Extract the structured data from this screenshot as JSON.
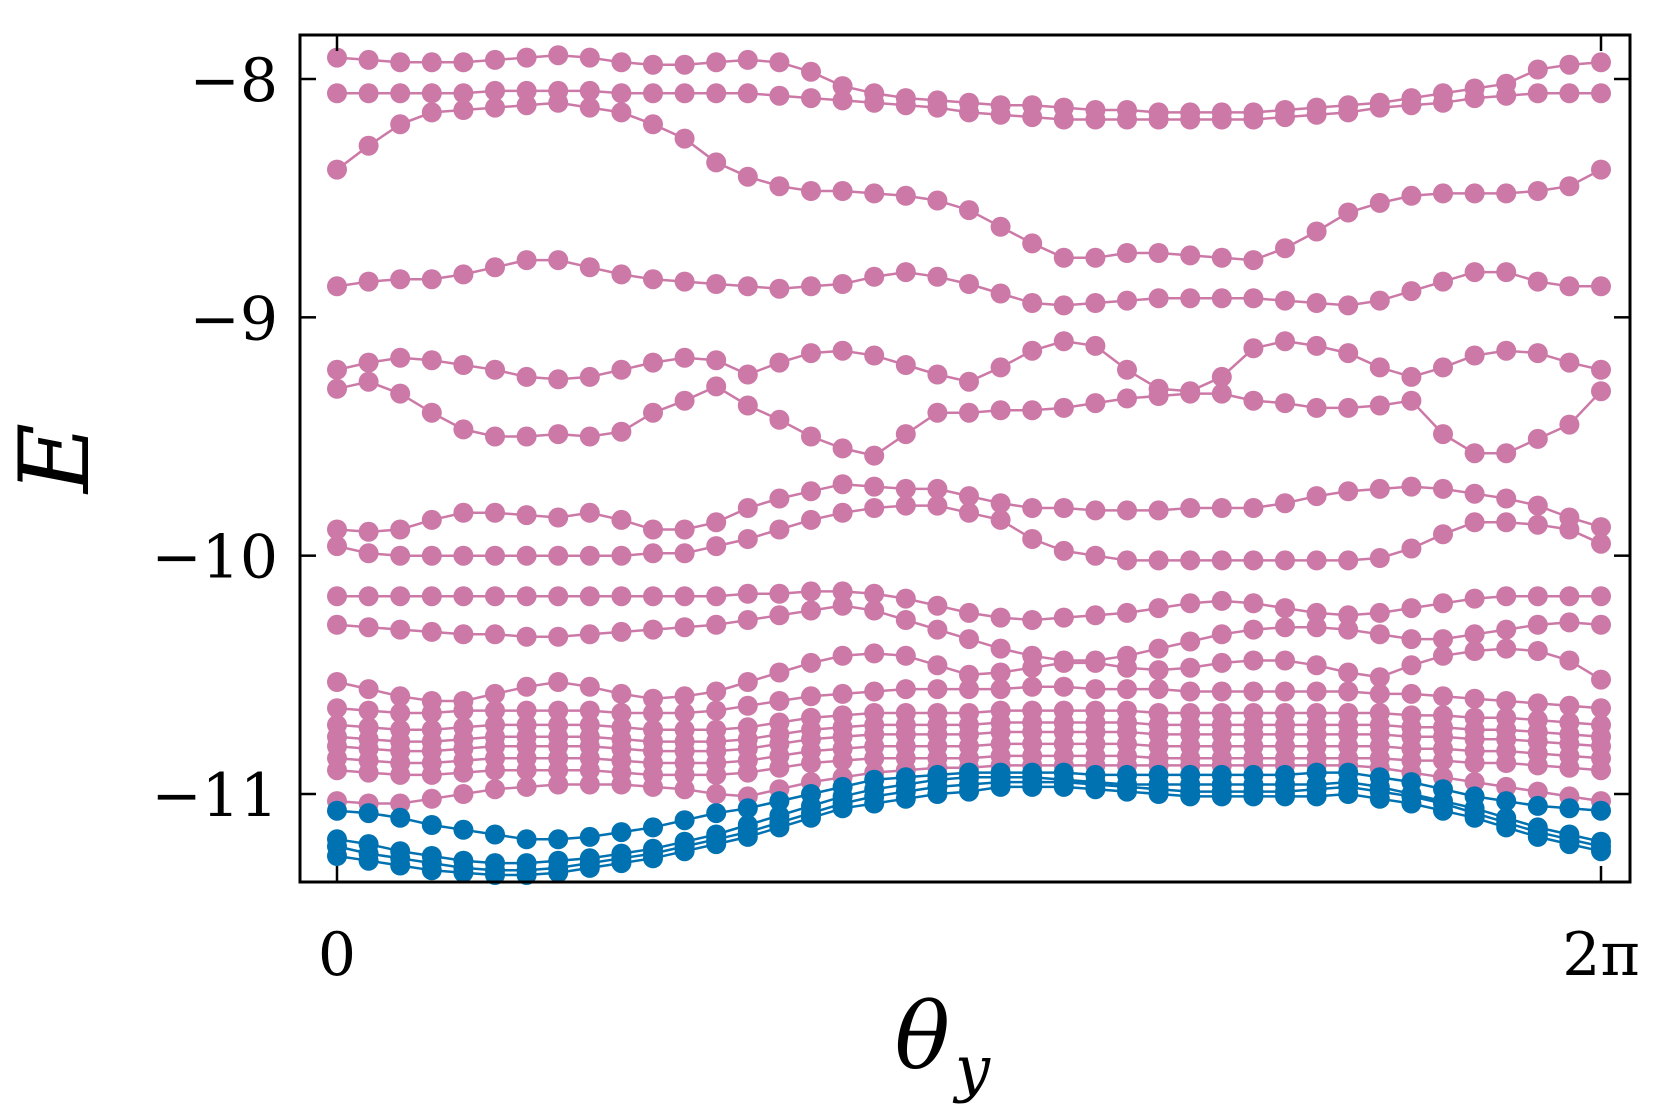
{
  "chart_data": {
    "type": "line",
    "xlabel": "θ",
    "xlabel_sub": "y",
    "ylabel": "E",
    "xlim": [
      0,
      6.2832
    ],
    "ylim": [
      -11.43,
      -7.8
    ],
    "grid": false,
    "legend": "none",
    "x_ticks": [
      {
        "value": 0,
        "label": "0"
      },
      {
        "value": 6.2832,
        "label": "2π"
      }
    ],
    "y_ticks": [
      {
        "value": -8,
        "label": "−8"
      },
      {
        "value": -9,
        "label": "−9"
      },
      {
        "value": -10,
        "label": "−10"
      },
      {
        "value": -11,
        "label": "−11"
      }
    ],
    "colors": {
      "upper_bands": "#cc79a7",
      "lowest_bands": "#0072b2"
    },
    "n_points": 41,
    "series": [
      {
        "color": "#0072b2",
        "values": [
          -11.26,
          -11.28,
          -11.3,
          -11.32,
          -11.33,
          -11.34,
          -11.34,
          -11.33,
          -11.31,
          -11.29,
          -11.27,
          -11.24,
          -11.21,
          -11.18,
          -11.14,
          -11.1,
          -11.06,
          -11.04,
          -11.02,
          -11.0,
          -10.99,
          -10.97,
          -10.97,
          -10.97,
          -10.98,
          -10.99,
          -11.0,
          -11.01,
          -11.01,
          -11.01,
          -11.01,
          -11.01,
          -11.0,
          -11.02,
          -11.04,
          -11.07,
          -11.1,
          -11.14,
          -11.18,
          -11.21,
          -11.24
        ]
      },
      {
        "color": "#0072b2",
        "values": [
          -11.22,
          -11.25,
          -11.27,
          -11.29,
          -11.31,
          -11.32,
          -11.32,
          -11.31,
          -11.29,
          -11.27,
          -11.25,
          -11.22,
          -11.19,
          -11.16,
          -11.12,
          -11.08,
          -11.04,
          -11.01,
          -10.99,
          -10.97,
          -10.96,
          -10.95,
          -10.95,
          -10.95,
          -10.96,
          -10.97,
          -10.98,
          -10.99,
          -10.99,
          -10.99,
          -10.99,
          -10.98,
          -10.97,
          -10.99,
          -11.01,
          -11.04,
          -11.08,
          -11.12,
          -11.16,
          -11.19,
          -11.22
        ]
      },
      {
        "color": "#0072b2",
        "values": [
          -11.19,
          -11.21,
          -11.24,
          -11.26,
          -11.28,
          -11.29,
          -11.29,
          -11.28,
          -11.27,
          -11.25,
          -11.23,
          -11.2,
          -11.17,
          -11.13,
          -11.09,
          -11.05,
          -11.01,
          -10.98,
          -10.96,
          -10.94,
          -10.93,
          -10.93,
          -10.93,
          -10.94,
          -10.95,
          -10.96,
          -10.96,
          -10.96,
          -10.96,
          -10.96,
          -10.96,
          -10.96,
          -10.95,
          -10.97,
          -11.0,
          -11.03,
          -11.06,
          -11.1,
          -11.14,
          -11.17,
          -11.2
        ]
      },
      {
        "color": "#0072b2",
        "values": [
          -11.07,
          -11.08,
          -11.1,
          -11.13,
          -11.15,
          -11.17,
          -11.19,
          -11.19,
          -11.18,
          -11.16,
          -11.14,
          -11.11,
          -11.08,
          -11.06,
          -11.03,
          -11.0,
          -10.97,
          -10.94,
          -10.93,
          -10.92,
          -10.91,
          -10.91,
          -10.91,
          -10.91,
          -10.92,
          -10.92,
          -10.92,
          -10.92,
          -10.92,
          -10.92,
          -10.92,
          -10.91,
          -10.91,
          -10.93,
          -10.95,
          -10.98,
          -11.01,
          -11.03,
          -11.05,
          -11.06,
          -11.07
        ]
      },
      {
        "color": "#cc79a7",
        "values": [
          -11.03,
          -11.04,
          -11.04,
          -11.02,
          -11.0,
          -10.98,
          -10.97,
          -10.96,
          -10.96,
          -10.96,
          -10.97,
          -10.98,
          -11.0,
          -11.01,
          -10.98,
          -10.95,
          -10.93,
          -10.91,
          -10.9,
          -10.89,
          -10.89,
          -10.88,
          -10.88,
          -10.88,
          -10.88,
          -10.88,
          -10.88,
          -10.88,
          -10.88,
          -10.88,
          -10.88,
          -10.88,
          -10.88,
          -10.89,
          -10.91,
          -10.93,
          -10.95,
          -10.97,
          -10.99,
          -11.01,
          -11.03
        ]
      },
      {
        "color": "#cc79a7",
        "values": [
          -10.9,
          -10.91,
          -10.92,
          -10.92,
          -10.91,
          -10.9,
          -10.9,
          -10.9,
          -10.9,
          -10.91,
          -10.92,
          -10.92,
          -10.92,
          -10.91,
          -10.89,
          -10.87,
          -10.86,
          -10.85,
          -10.85,
          -10.85,
          -10.85,
          -10.84,
          -10.84,
          -10.84,
          -10.84,
          -10.84,
          -10.85,
          -10.85,
          -10.85,
          -10.85,
          -10.85,
          -10.85,
          -10.85,
          -10.85,
          -10.86,
          -10.86,
          -10.87,
          -10.87,
          -10.88,
          -10.89,
          -10.9
        ]
      },
      {
        "color": "#cc79a7",
        "values": [
          -10.85,
          -10.86,
          -10.87,
          -10.87,
          -10.86,
          -10.85,
          -10.85,
          -10.85,
          -10.85,
          -10.86,
          -10.87,
          -10.87,
          -10.87,
          -10.86,
          -10.84,
          -10.82,
          -10.81,
          -10.8,
          -10.8,
          -10.8,
          -10.8,
          -10.79,
          -10.79,
          -10.79,
          -10.79,
          -10.79,
          -10.8,
          -10.8,
          -10.8,
          -10.8,
          -10.8,
          -10.8,
          -10.8,
          -10.8,
          -10.81,
          -10.81,
          -10.82,
          -10.82,
          -10.83,
          -10.84,
          -10.85
        ]
      },
      {
        "color": "#cc79a7",
        "values": [
          -10.8,
          -10.81,
          -10.82,
          -10.82,
          -10.81,
          -10.8,
          -10.8,
          -10.8,
          -10.8,
          -10.81,
          -10.82,
          -10.82,
          -10.82,
          -10.81,
          -10.79,
          -10.77,
          -10.76,
          -10.75,
          -10.75,
          -10.75,
          -10.75,
          -10.74,
          -10.74,
          -10.74,
          -10.74,
          -10.74,
          -10.75,
          -10.75,
          -10.75,
          -10.75,
          -10.75,
          -10.75,
          -10.75,
          -10.75,
          -10.76,
          -10.76,
          -10.77,
          -10.77,
          -10.78,
          -10.79,
          -10.8
        ]
      },
      {
        "color": "#cc79a7",
        "values": [
          -10.76,
          -10.77,
          -10.78,
          -10.78,
          -10.77,
          -10.76,
          -10.76,
          -10.76,
          -10.76,
          -10.77,
          -10.78,
          -10.78,
          -10.78,
          -10.77,
          -10.75,
          -10.73,
          -10.72,
          -10.71,
          -10.71,
          -10.71,
          -10.71,
          -10.7,
          -10.7,
          -10.7,
          -10.7,
          -10.7,
          -10.71,
          -10.71,
          -10.71,
          -10.71,
          -10.71,
          -10.71,
          -10.71,
          -10.71,
          -10.72,
          -10.72,
          -10.73,
          -10.73,
          -10.74,
          -10.75,
          -10.76
        ]
      },
      {
        "color": "#cc79a7",
        "values": [
          -10.71,
          -10.72,
          -10.73,
          -10.73,
          -10.72,
          -10.71,
          -10.71,
          -10.71,
          -10.71,
          -10.72,
          -10.73,
          -10.73,
          -10.73,
          -10.72,
          -10.7,
          -10.68,
          -10.67,
          -10.66,
          -10.66,
          -10.66,
          -10.66,
          -10.65,
          -10.65,
          -10.65,
          -10.65,
          -10.65,
          -10.66,
          -10.66,
          -10.66,
          -10.66,
          -10.66,
          -10.66,
          -10.66,
          -10.66,
          -10.67,
          -10.67,
          -10.68,
          -10.68,
          -10.69,
          -10.7,
          -10.71
        ]
      },
      {
        "color": "#cc79a7",
        "values": [
          -10.64,
          -10.65,
          -10.66,
          -10.66,
          -10.65,
          -10.65,
          -10.65,
          -10.65,
          -10.65,
          -10.66,
          -10.66,
          -10.66,
          -10.65,
          -10.63,
          -10.61,
          -10.59,
          -10.58,
          -10.57,
          -10.56,
          -10.56,
          -10.56,
          -10.56,
          -10.55,
          -10.55,
          -10.56,
          -10.56,
          -10.56,
          -10.57,
          -10.57,
          -10.57,
          -10.57,
          -10.57,
          -10.57,
          -10.58,
          -10.58,
          -10.59,
          -10.6,
          -10.61,
          -10.62,
          -10.63,
          -10.64
        ]
      },
      {
        "color": "#cc79a7",
        "values": [
          -10.53,
          -10.56,
          -10.59,
          -10.61,
          -10.61,
          -10.58,
          -10.55,
          -10.53,
          -10.55,
          -10.58,
          -10.6,
          -10.59,
          -10.57,
          -10.53,
          -10.49,
          -10.45,
          -10.42,
          -10.41,
          -10.42,
          -10.46,
          -10.5,
          -10.49,
          -10.47,
          -10.45,
          -10.45,
          -10.47,
          -10.48,
          -10.47,
          -10.45,
          -10.44,
          -10.44,
          -10.46,
          -10.49,
          -10.51,
          -10.46,
          -10.42,
          -10.4,
          -10.39,
          -10.4,
          -10.44,
          -10.52
        ]
      },
      {
        "color": "#cc79a7",
        "values": [
          -10.29,
          -10.3,
          -10.31,
          -10.32,
          -10.33,
          -10.33,
          -10.34,
          -10.34,
          -10.33,
          -10.32,
          -10.31,
          -10.3,
          -10.29,
          -10.27,
          -10.25,
          -10.23,
          -10.21,
          -10.23,
          -10.27,
          -10.31,
          -10.35,
          -10.39,
          -10.42,
          -10.44,
          -10.44,
          -10.42,
          -10.39,
          -10.36,
          -10.33,
          -10.31,
          -10.3,
          -10.3,
          -10.31,
          -10.33,
          -10.35,
          -10.35,
          -10.33,
          -10.31,
          -10.29,
          -10.28,
          -10.29
        ]
      },
      {
        "color": "#cc79a7",
        "values": [
          -10.17,
          -10.17,
          -10.17,
          -10.17,
          -10.17,
          -10.17,
          -10.17,
          -10.17,
          -10.17,
          -10.17,
          -10.17,
          -10.17,
          -10.17,
          -10.16,
          -10.16,
          -10.15,
          -10.15,
          -10.16,
          -10.18,
          -10.21,
          -10.24,
          -10.26,
          -10.27,
          -10.26,
          -10.25,
          -10.24,
          -10.22,
          -10.2,
          -10.19,
          -10.2,
          -10.22,
          -10.24,
          -10.25,
          -10.24,
          -10.22,
          -10.2,
          -10.18,
          -10.17,
          -10.17,
          -10.17,
          -10.17
        ]
      },
      {
        "color": "#cc79a7",
        "values": [
          -9.96,
          -9.99,
          -10.0,
          -10.0,
          -10.0,
          -10.0,
          -10.0,
          -10.0,
          -10.0,
          -10.0,
          -9.99,
          -9.99,
          -9.96,
          -9.93,
          -9.89,
          -9.85,
          -9.82,
          -9.8,
          -9.79,
          -9.79,
          -9.82,
          -9.85,
          -9.93,
          -9.98,
          -10.0,
          -10.02,
          -10.02,
          -10.02,
          -10.02,
          -10.02,
          -10.02,
          -10.02,
          -10.02,
          -10.01,
          -9.97,
          -9.91,
          -9.86,
          -9.86,
          -9.87,
          -9.89,
          -9.95
        ]
      },
      {
        "color": "#cc79a7",
        "values": [
          -9.89,
          -9.9,
          -9.89,
          -9.85,
          -9.82,
          -9.82,
          -9.83,
          -9.84,
          -9.82,
          -9.85,
          -9.89,
          -9.89,
          -9.86,
          -9.8,
          -9.76,
          -9.73,
          -9.7,
          -9.71,
          -9.72,
          -9.72,
          -9.75,
          -9.78,
          -9.8,
          -9.8,
          -9.81,
          -9.81,
          -9.81,
          -9.8,
          -9.8,
          -9.8,
          -9.78,
          -9.75,
          -9.73,
          -9.72,
          -9.71,
          -9.72,
          -9.74,
          -9.76,
          -9.79,
          -9.84,
          -9.88
        ]
      },
      {
        "color": "#cc79a7",
        "values": [
          -9.3,
          -9.27,
          -9.32,
          -9.4,
          -9.47,
          -9.5,
          -9.5,
          -9.49,
          -9.5,
          -9.48,
          -9.4,
          -9.35,
          -9.29,
          -9.37,
          -9.43,
          -9.5,
          -9.55,
          -9.58,
          -9.49,
          -9.4,
          -9.4,
          -9.39,
          -9.39,
          -9.38,
          -9.36,
          -9.34,
          -9.33,
          -9.32,
          -9.32,
          -9.35,
          -9.36,
          -9.38,
          -9.38,
          -9.37,
          -9.35,
          -9.49,
          -9.57,
          -9.57,
          -9.51,
          -9.45,
          -9.31
        ]
      },
      {
        "color": "#cc79a7",
        "values": [
          -9.22,
          -9.19,
          -9.17,
          -9.18,
          -9.2,
          -9.22,
          -9.25,
          -9.26,
          -9.25,
          -9.22,
          -9.19,
          -9.17,
          -9.18,
          -9.24,
          -9.19,
          -9.15,
          -9.14,
          -9.16,
          -9.2,
          -9.24,
          -9.27,
          -9.21,
          -9.14,
          -9.1,
          -9.12,
          -9.22,
          -9.3,
          -9.31,
          -9.25,
          -9.13,
          -9.1,
          -9.12,
          -9.15,
          -9.21,
          -9.25,
          -9.21,
          -9.16,
          -9.14,
          -9.15,
          -9.19,
          -9.22
        ]
      },
      {
        "color": "#cc79a7",
        "values": [
          -8.87,
          -8.85,
          -8.84,
          -8.84,
          -8.82,
          -8.79,
          -8.76,
          -8.76,
          -8.79,
          -8.82,
          -8.84,
          -8.85,
          -8.86,
          -8.87,
          -8.88,
          -8.87,
          -8.86,
          -8.83,
          -8.81,
          -8.83,
          -8.86,
          -8.9,
          -8.94,
          -8.95,
          -8.94,
          -8.93,
          -8.92,
          -8.92,
          -8.92,
          -8.92,
          -8.93,
          -8.94,
          -8.95,
          -8.93,
          -8.89,
          -8.85,
          -8.81,
          -8.81,
          -8.85,
          -8.87,
          -8.87
        ]
      },
      {
        "color": "#cc79a7",
        "values": [
          -8.38,
          -8.28,
          -8.19,
          -8.14,
          -8.13,
          -8.12,
          -8.11,
          -8.1,
          -8.12,
          -8.14,
          -8.19,
          -8.25,
          -8.35,
          -8.41,
          -8.45,
          -8.47,
          -8.47,
          -8.48,
          -8.49,
          -8.51,
          -8.55,
          -8.62,
          -8.69,
          -8.75,
          -8.75,
          -8.73,
          -8.73,
          -8.74,
          -8.75,
          -8.76,
          -8.71,
          -8.64,
          -8.56,
          -8.52,
          -8.49,
          -8.48,
          -8.48,
          -8.48,
          -8.47,
          -8.45,
          -8.38
        ]
      },
      {
        "color": "#cc79a7",
        "values": [
          -8.06,
          -8.06,
          -8.06,
          -8.06,
          -8.06,
          -8.05,
          -8.05,
          -8.05,
          -8.05,
          -8.06,
          -8.06,
          -8.06,
          -8.06,
          -8.06,
          -8.07,
          -8.08,
          -8.09,
          -8.1,
          -8.11,
          -8.12,
          -8.14,
          -8.15,
          -8.16,
          -8.17,
          -8.17,
          -8.17,
          -8.17,
          -8.17,
          -8.17,
          -8.17,
          -8.16,
          -8.15,
          -8.14,
          -8.12,
          -8.11,
          -8.1,
          -8.08,
          -8.07,
          -8.06,
          -8.06,
          -8.06
        ]
      },
      {
        "color": "#cc79a7",
        "values": [
          -7.91,
          -7.92,
          -7.93,
          -7.93,
          -7.93,
          -7.92,
          -7.91,
          -7.9,
          -7.91,
          -7.93,
          -7.94,
          -7.94,
          -7.93,
          -7.92,
          -7.93,
          -7.97,
          -8.03,
          -8.06,
          -8.08,
          -8.09,
          -8.1,
          -8.11,
          -8.11,
          -8.12,
          -8.13,
          -8.13,
          -8.14,
          -8.14,
          -8.14,
          -8.14,
          -8.13,
          -8.12,
          -8.11,
          -8.1,
          -8.08,
          -8.06,
          -8.04,
          -8.02,
          -7.96,
          -7.94,
          -7.93
        ]
      }
    ]
  }
}
